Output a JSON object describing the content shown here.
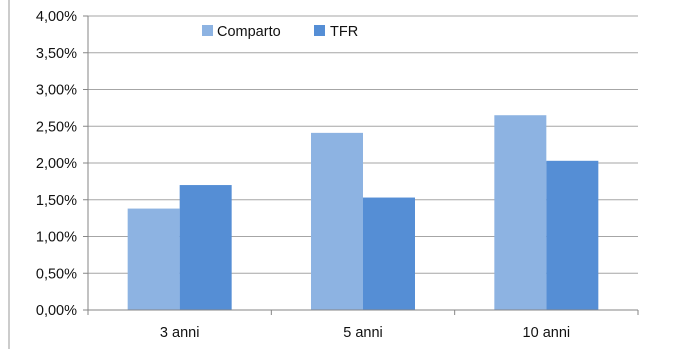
{
  "chart_data": {
    "type": "bar",
    "title": "",
    "xlabel": "",
    "ylabel": "",
    "categories": [
      "3 anni",
      "5 anni",
      "10 anni"
    ],
    "series": [
      {
        "name": "Comparto",
        "color": "#8db3e2",
        "values": [
          1.38,
          2.41,
          2.65
        ]
      },
      {
        "name": "TFR",
        "color": "#558ed5",
        "values": [
          1.7,
          1.53,
          2.03
        ]
      }
    ],
    "ylim": [
      0,
      4
    ],
    "ytick_values": [
      0,
      0.5,
      1.0,
      1.5,
      2.0,
      2.5,
      3.0,
      3.5,
      4.0
    ],
    "ytick_labels": [
      "0,00%",
      "0,50%",
      "1,00%",
      "1,50%",
      "2,00%",
      "2,50%",
      "3,00%",
      "3,50%",
      "4,00%"
    ],
    "grid": true,
    "legend": "top-center"
  }
}
